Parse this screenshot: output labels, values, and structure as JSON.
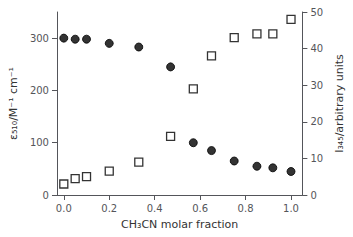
{
  "chart_data": {
    "type": "scatter",
    "xlabel": "CH₃CN molar fraction",
    "ylabel": "ε₅₁₀/M⁻¹ cm⁻¹",
    "y2label": "I₃₄₅/arbitrary units",
    "x": [
      0.0,
      0.05,
      0.1,
      0.2,
      0.33,
      0.47,
      0.57,
      0.65,
      0.75,
      0.85,
      0.92,
      1.0
    ],
    "series": [
      {
        "color": "#000000",
        "marker": "circle",
        "values": [
          300,
          298,
          298,
          290,
          283,
          245,
          100,
          85,
          65,
          55,
          52,
          45
        ]
      },
      {
        "color": "#000000",
        "marker": "square_open",
        "axis": "y2",
        "values": [
          3.0,
          4.5,
          5.0,
          6.5,
          9.0,
          16,
          29,
          38,
          43,
          44,
          44,
          48
        ]
      }
    ],
    "xlim": [
      -0.03,
      1.05
    ],
    "xticks": [
      {
        "value": 0.0,
        "label": "0.0"
      },
      0.2,
      0.4,
      0.6,
      0.8,
      {
        "value": 1.0,
        "label": "1.0"
      }
    ],
    "ylim": [
      0,
      350
    ],
    "yticks": [
      0,
      100,
      200,
      300
    ],
    "y2lim": [
      0,
      50
    ],
    "y2ticks": [
      0,
      10,
      20,
      30,
      40,
      50
    ],
    "grid": false
  }
}
